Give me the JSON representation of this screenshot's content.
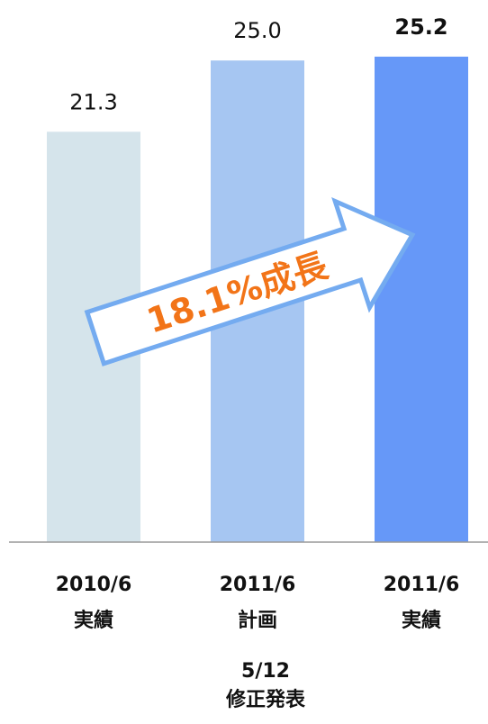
{
  "chart_data": {
    "type": "bar",
    "categories": [
      [
        "2010/6",
        "実績"
      ],
      [
        "2011/6",
        "計画"
      ],
      [
        "2011/6",
        "実績"
      ]
    ],
    "values": [
      21.3,
      25,
      25.2
    ],
    "value_labels": [
      "21.3",
      "25.0",
      "25.2"
    ],
    "colors": [
      "#d5e4eb",
      "#a6c6f2",
      "#6698f8"
    ],
    "ylim": [
      0,
      28
    ],
    "arrow_label": "18.1%成長",
    "annotation": [
      "5/12",
      "修正発表"
    ]
  }
}
